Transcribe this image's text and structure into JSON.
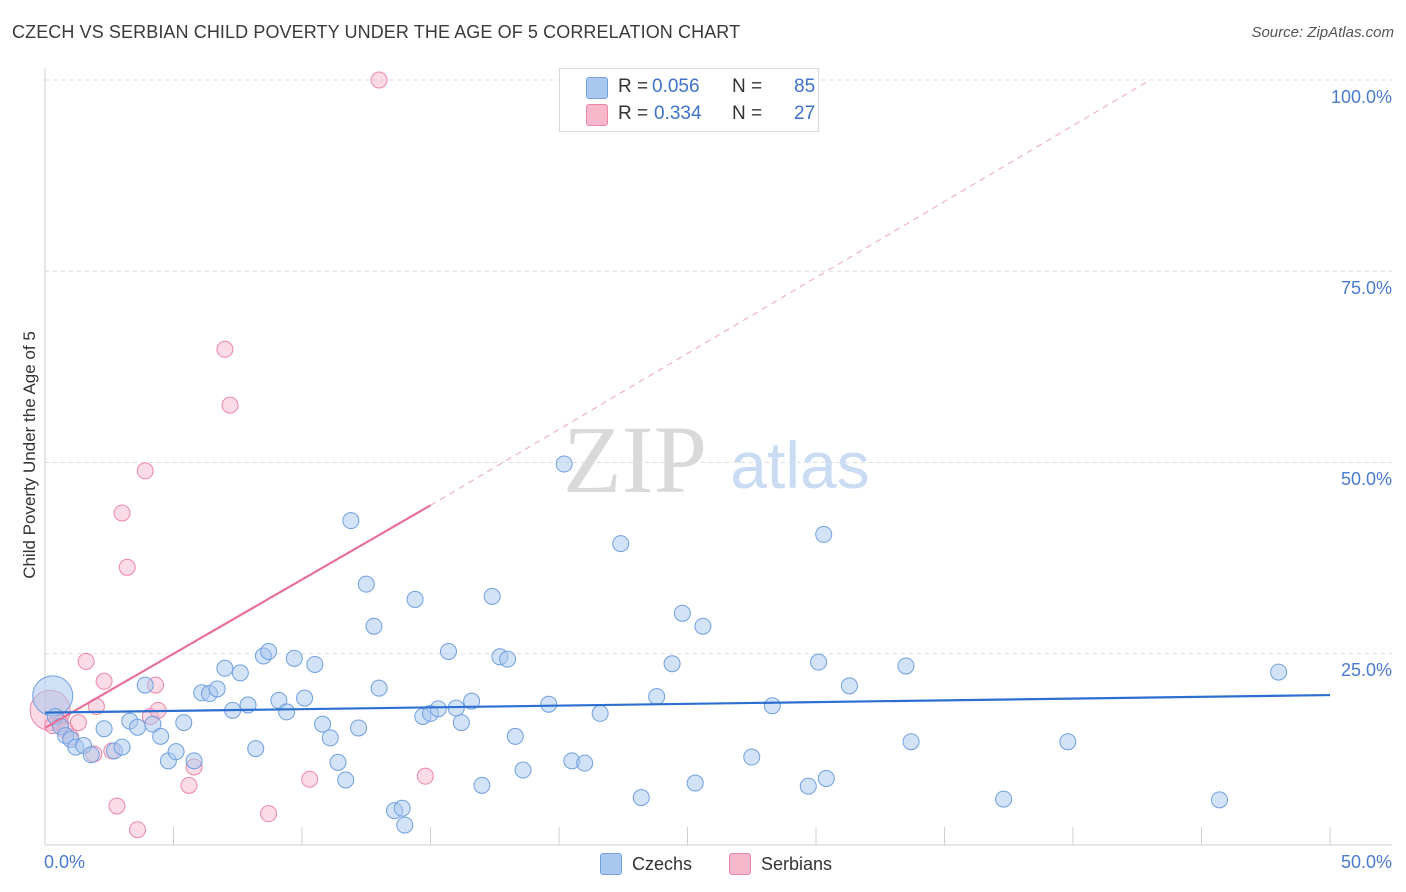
{
  "title": "CZECH VS SERBIAN CHILD POVERTY UNDER THE AGE OF 5 CORRELATION CHART",
  "source": "Source: ZipAtlas.com",
  "watermark": {
    "zip": "ZIP",
    "atlas": "atlas"
  },
  "legend_top": [
    {
      "r_label": "R =",
      "r_value": "0.056",
      "n_label": "N =",
      "n_value": "85",
      "color": "#a8c8f0"
    },
    {
      "r_label": "R =",
      "r_value": "0.334",
      "n_label": "N =",
      "n_value": "27",
      "color": "#f7b8cc"
    }
  ],
  "legend_bottom": [
    {
      "label": "Czechs",
      "color": "#a8c8f0"
    },
    {
      "label": "Serbians",
      "color": "#f7b8cc"
    }
  ],
  "colors": {
    "czech_fill": "#a8c8f0",
    "czech_stroke": "#6f9fe0",
    "czech_line": "#2d6fd1",
    "serbian_fill": "#f7b8cc",
    "serbian_stroke": "#ec87a7",
    "serbian_line": "#e8709a",
    "tick_text": "#4a7bd0"
  },
  "chart_data": {
    "type": "scatter",
    "title": "CZECH VS SERBIAN CHILD POVERTY UNDER THE AGE OF 5 CORRELATION CHART",
    "xlabel": "",
    "ylabel": "Child Poverty Under the Age of 5",
    "xlim": [
      0,
      50
    ],
    "ylim": [
      0,
      100
    ],
    "x_tick_labels": [
      "0.0%",
      "50.0%"
    ],
    "y_tick_values": [
      25,
      50,
      75,
      100
    ],
    "y_tick_labels": [
      "25.0%",
      "50.0%",
      "75.0%",
      "100.0%"
    ],
    "grid": true,
    "legend_position": "top-center",
    "series": [
      {
        "name": "Czechs",
        "R": 0.056,
        "N": 85,
        "trend": {
          "x": [
            0,
            50
          ],
          "y": [
            17.3,
            19.6
          ]
        },
        "points": [
          {
            "x": 0.3,
            "y": 19.5,
            "big": true
          },
          {
            "x": 0.4,
            "y": 16.8
          },
          {
            "x": 0.6,
            "y": 15.5
          },
          {
            "x": 0.8,
            "y": 14.3
          },
          {
            "x": 1.0,
            "y": 13.8
          },
          {
            "x": 1.2,
            "y": 12.8
          },
          {
            "x": 1.5,
            "y": 13.0
          },
          {
            "x": 1.8,
            "y": 11.8
          },
          {
            "x": 2.3,
            "y": 15.2
          },
          {
            "x": 2.7,
            "y": 12.3
          },
          {
            "x": 3.0,
            "y": 12.8
          },
          {
            "x": 3.3,
            "y": 16.2
          },
          {
            "x": 3.6,
            "y": 15.4
          },
          {
            "x": 3.9,
            "y": 20.9
          },
          {
            "x": 4.2,
            "y": 15.8
          },
          {
            "x": 4.5,
            "y": 14.2
          },
          {
            "x": 4.8,
            "y": 11.0
          },
          {
            "x": 5.1,
            "y": 12.2
          },
          {
            "x": 5.4,
            "y": 16.0
          },
          {
            "x": 5.8,
            "y": 11.0
          },
          {
            "x": 6.1,
            "y": 19.9
          },
          {
            "x": 6.4,
            "y": 19.8
          },
          {
            "x": 6.7,
            "y": 20.4
          },
          {
            "x": 7.0,
            "y": 23.1
          },
          {
            "x": 7.3,
            "y": 17.6
          },
          {
            "x": 7.6,
            "y": 22.5
          },
          {
            "x": 7.9,
            "y": 18.3
          },
          {
            "x": 8.2,
            "y": 12.6
          },
          {
            "x": 8.5,
            "y": 24.7
          },
          {
            "x": 8.7,
            "y": 25.3
          },
          {
            "x": 9.1,
            "y": 18.9
          },
          {
            "x": 9.4,
            "y": 17.4
          },
          {
            "x": 9.7,
            "y": 24.4
          },
          {
            "x": 10.1,
            "y": 19.2
          },
          {
            "x": 10.5,
            "y": 23.6
          },
          {
            "x": 10.8,
            "y": 15.8
          },
          {
            "x": 11.1,
            "y": 14.0
          },
          {
            "x": 11.4,
            "y": 10.8
          },
          {
            "x": 11.7,
            "y": 8.5
          },
          {
            "x": 11.9,
            "y": 42.4
          },
          {
            "x": 12.2,
            "y": 15.3
          },
          {
            "x": 12.5,
            "y": 34.1
          },
          {
            "x": 12.8,
            "y": 28.6
          },
          {
            "x": 13.0,
            "y": 20.5
          },
          {
            "x": 13.6,
            "y": 4.5
          },
          {
            "x": 13.9,
            "y": 4.8
          },
          {
            "x": 14.0,
            "y": 2.6
          },
          {
            "x": 14.4,
            "y": 32.1
          },
          {
            "x": 14.7,
            "y": 16.8
          },
          {
            "x": 15.0,
            "y": 17.2
          },
          {
            "x": 15.3,
            "y": 17.8
          },
          {
            "x": 15.7,
            "y": 25.3
          },
          {
            "x": 16.0,
            "y": 17.9
          },
          {
            "x": 16.2,
            "y": 16.0
          },
          {
            "x": 16.6,
            "y": 18.8
          },
          {
            "x": 17.0,
            "y": 7.8
          },
          {
            "x": 17.4,
            "y": 32.5
          },
          {
            "x": 17.7,
            "y": 24.6
          },
          {
            "x": 18.0,
            "y": 24.3
          },
          {
            "x": 18.3,
            "y": 14.2
          },
          {
            "x": 18.6,
            "y": 9.8
          },
          {
            "x": 19.6,
            "y": 18.4
          },
          {
            "x": 20.2,
            "y": 49.8
          },
          {
            "x": 20.5,
            "y": 11.0
          },
          {
            "x": 21.0,
            "y": 10.7
          },
          {
            "x": 21.6,
            "y": 17.2
          },
          {
            "x": 22.4,
            "y": 39.4
          },
          {
            "x": 23.2,
            "y": 6.2
          },
          {
            "x": 23.8,
            "y": 19.4
          },
          {
            "x": 24.4,
            "y": 23.7
          },
          {
            "x": 24.8,
            "y": 30.3
          },
          {
            "x": 25.3,
            "y": 8.1
          },
          {
            "x": 25.6,
            "y": 28.6
          },
          {
            "x": 27.5,
            "y": 11.5
          },
          {
            "x": 28.3,
            "y": 18.2
          },
          {
            "x": 29.7,
            "y": 7.7
          },
          {
            "x": 30.1,
            "y": 23.9
          },
          {
            "x": 30.3,
            "y": 40.6
          },
          {
            "x": 30.4,
            "y": 8.7
          },
          {
            "x": 31.3,
            "y": 20.8
          },
          {
            "x": 33.5,
            "y": 23.4
          },
          {
            "x": 33.7,
            "y": 13.5
          },
          {
            "x": 37.3,
            "y": 6.0
          },
          {
            "x": 39.8,
            "y": 13.5
          },
          {
            "x": 45.7,
            "y": 5.9
          },
          {
            "x": 48.0,
            "y": 22.6
          }
        ]
      },
      {
        "name": "Serbians",
        "R": 0.334,
        "N": 27,
        "trend": {
          "x": [
            0,
            15
          ],
          "y": [
            15.3,
            44.4
          ]
        },
        "trend_extension": {
          "x": [
            15,
            43
          ],
          "y": [
            44.4,
            100
          ]
        },
        "points": [
          {
            "x": 0.2,
            "y": 17.6,
            "big": true
          },
          {
            "x": 0.3,
            "y": 15.6
          },
          {
            "x": 0.5,
            "y": 16.3
          },
          {
            "x": 0.6,
            "y": 15.9
          },
          {
            "x": 0.8,
            "y": 15.0
          },
          {
            "x": 1.0,
            "y": 14.1
          },
          {
            "x": 1.3,
            "y": 16.0
          },
          {
            "x": 1.6,
            "y": 24.0
          },
          {
            "x": 1.9,
            "y": 11.9
          },
          {
            "x": 2.0,
            "y": 18.1
          },
          {
            "x": 2.3,
            "y": 21.4
          },
          {
            "x": 2.6,
            "y": 12.3
          },
          {
            "x": 2.8,
            "y": 5.1
          },
          {
            "x": 3.0,
            "y": 43.4
          },
          {
            "x": 3.2,
            "y": 36.3
          },
          {
            "x": 3.6,
            "y": 2.0
          },
          {
            "x": 3.9,
            "y": 48.9
          },
          {
            "x": 4.1,
            "y": 16.8
          },
          {
            "x": 4.3,
            "y": 20.9
          },
          {
            "x": 4.4,
            "y": 17.6
          },
          {
            "x": 5.6,
            "y": 7.8
          },
          {
            "x": 5.8,
            "y": 10.2
          },
          {
            "x": 7.0,
            "y": 64.8
          },
          {
            "x": 7.2,
            "y": 57.5
          },
          {
            "x": 8.7,
            "y": 4.1
          },
          {
            "x": 10.3,
            "y": 8.6
          },
          {
            "x": 13.0,
            "y": 100.0
          },
          {
            "x": 14.8,
            "y": 9.0
          }
        ]
      }
    ]
  }
}
